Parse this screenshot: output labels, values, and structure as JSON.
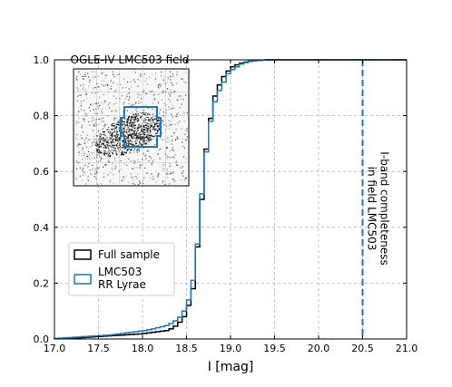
{
  "chart_data": {
    "type": "line",
    "step": true,
    "xlabel": "I [mag]",
    "ylabel": "",
    "xlim": [
      17.0,
      21.0
    ],
    "ylim": [
      0.0,
      1.0
    ],
    "x_ticks": [
      "17.0",
      "17.5",
      "18.0",
      "18.5",
      "19.0",
      "19.5",
      "20.0",
      "20.5",
      "21.0"
    ],
    "y_ticks": [
      "0.0",
      "0.2",
      "0.4",
      "0.6",
      "0.8",
      "1.0"
    ],
    "grid": true,
    "legend_position": "lower-left",
    "inset_title": "OGLE-IV LMC503 field",
    "annotation": {
      "x": 20.5,
      "lines": [
        "I-band completeness",
        "in field LMC503"
      ]
    },
    "bin_edges": [
      17.0,
      17.05,
      17.1,
      17.15,
      17.2,
      17.25,
      17.3,
      17.35,
      17.4,
      17.45,
      17.5,
      17.55,
      17.6,
      17.65,
      17.7,
      17.75,
      17.8,
      17.85,
      17.9,
      17.95,
      18.0,
      18.05,
      18.1,
      18.15,
      18.2,
      18.25,
      18.3,
      18.35,
      18.4,
      18.45,
      18.5,
      18.55,
      18.6,
      18.65,
      18.7,
      18.75,
      18.8,
      18.85,
      18.9,
      18.95,
      19.0,
      19.05,
      19.1,
      19.15,
      19.2,
      19.25,
      19.3,
      19.35,
      19.4,
      19.45,
      19.5,
      19.55,
      19.6,
      19.65,
      19.7,
      19.75,
      19.8,
      19.85,
      19.9,
      19.95,
      20.0,
      20.05,
      20.1,
      20.15,
      20.2,
      20.25,
      20.3,
      20.35,
      20.4,
      20.45,
      20.5,
      20.55,
      20.6,
      20.65,
      20.7,
      20.75,
      20.8,
      20.85,
      20.9,
      20.95,
      21.0
    ],
    "series": [
      {
        "name": "Full sample",
        "color": "#000000",
        "values": [
          0.001,
          0.002,
          0.002,
          0.003,
          0.004,
          0.004,
          0.005,
          0.006,
          0.007,
          0.008,
          0.009,
          0.01,
          0.011,
          0.012,
          0.013,
          0.014,
          0.015,
          0.016,
          0.017,
          0.018,
          0.02,
          0.022,
          0.024,
          0.026,
          0.028,
          0.03,
          0.036,
          0.046,
          0.06,
          0.08,
          0.12,
          0.18,
          0.33,
          0.5,
          0.68,
          0.79,
          0.87,
          0.91,
          0.94,
          0.96,
          0.975,
          0.982,
          0.988,
          0.992,
          0.995,
          0.997,
          0.998,
          0.999,
          1.0,
          1.0,
          1.0,
          1.0,
          1.0,
          1.0,
          1.0,
          1.0,
          1.0,
          1.0,
          1.0,
          1.0,
          1.0,
          1.0,
          1.0,
          1.0,
          1.0,
          1.0,
          1.0,
          1.0,
          1.0,
          1.0,
          1.0,
          1.0,
          1.0,
          1.0,
          1.0,
          1.0,
          1.0,
          1.0,
          1.0,
          1.0
        ]
      },
      {
        "name": "LMC503\nRR Lyrae",
        "color": "#1f77b4",
        "values": [
          0.002,
          0.003,
          0.004,
          0.005,
          0.006,
          0.007,
          0.008,
          0.009,
          0.01,
          0.011,
          0.012,
          0.013,
          0.014,
          0.016,
          0.018,
          0.02,
          0.022,
          0.024,
          0.026,
          0.028,
          0.03,
          0.033,
          0.036,
          0.04,
          0.044,
          0.048,
          0.055,
          0.065,
          0.078,
          0.1,
          0.14,
          0.21,
          0.34,
          0.52,
          0.67,
          0.78,
          0.85,
          0.89,
          0.92,
          0.95,
          0.965,
          0.975,
          0.985,
          0.99,
          0.994,
          0.996,
          0.998,
          0.999,
          1.0,
          1.0,
          1.0,
          1.0,
          1.0,
          1.0,
          1.0,
          1.0,
          1.0,
          1.0,
          1.0,
          1.0,
          1.0,
          1.0,
          1.0,
          1.0,
          1.0,
          1.0,
          1.0,
          1.0,
          1.0,
          1.0,
          1.0,
          1.0,
          1.0,
          1.0,
          1.0,
          1.0,
          1.0,
          1.0,
          1.0,
          1.0
        ]
      }
    ]
  }
}
